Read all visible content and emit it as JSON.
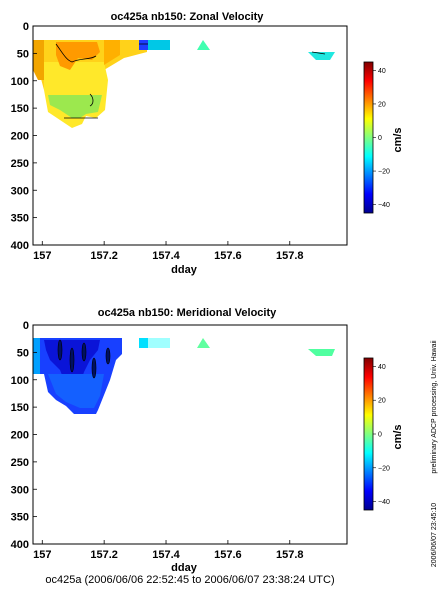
{
  "chart_data": [
    {
      "type": "heatmap",
      "title": "oc425a nb150: Zonal Velocity",
      "xlabel": "dday",
      "ylabel": "",
      "xlim": [
        156.97,
        157.985
      ],
      "ylim": [
        400,
        0
      ],
      "x_ticks": [
        "157",
        "157.2",
        "157.4",
        "157.6",
        "157.8"
      ],
      "y_ticks": [
        "0",
        "50",
        "100",
        "150",
        "200",
        "250",
        "300",
        "350",
        "400"
      ],
      "colorbar": {
        "label": "cm/s",
        "range": [
          -45,
          45
        ],
        "ticks": [
          "40",
          "20",
          "0",
          "−20",
          "−40"
        ]
      },
      "regions": [
        {
          "x": [
            157.0,
            157.25
          ],
          "y": [
            25,
            70
          ],
          "value": 28
        },
        {
          "x": [
            157.05,
            157.22
          ],
          "y": [
            70,
            160
          ],
          "value": 16
        },
        {
          "x": [
            157.32,
            157.37
          ],
          "y": [
            25,
            40
          ],
          "value": -12
        },
        {
          "x": [
            157.5,
            157.55
          ],
          "y": [
            25,
            40
          ],
          "value": 5
        },
        {
          "x": [
            157.88,
            157.93
          ],
          "y": [
            40,
            55
          ],
          "value": 3
        }
      ]
    },
    {
      "type": "heatmap",
      "title": "oc425a nb150: Meridional Velocity",
      "xlabel": "dday",
      "ylabel": "",
      "xlim": [
        156.97,
        157.985
      ],
      "ylim": [
        400,
        0
      ],
      "x_ticks": [
        "157",
        "157.2",
        "157.4",
        "157.6",
        "157.8"
      ],
      "y_ticks": [
        "0",
        "50",
        "100",
        "150",
        "200",
        "250",
        "300",
        "350",
        "400"
      ],
      "colorbar": {
        "label": "cm/s",
        "range": [
          -45,
          45
        ],
        "ticks": [
          "40",
          "20",
          "0",
          "−20",
          "−40"
        ]
      },
      "regions": [
        {
          "x": [
            157.0,
            157.25
          ],
          "y": [
            25,
            70
          ],
          "value": -38
        },
        {
          "x": [
            157.05,
            157.22
          ],
          "y": [
            70,
            160
          ],
          "value": -36
        },
        {
          "x": [
            157.32,
            157.37
          ],
          "y": [
            25,
            40
          ],
          "value": 0
        },
        {
          "x": [
            157.5,
            157.55
          ],
          "y": [
            25,
            40
          ],
          "value": 10
        },
        {
          "x": [
            157.88,
            157.93
          ],
          "y": [
            40,
            55
          ],
          "value": 5
        }
      ]
    }
  ],
  "footer": "oc425a (2006/06/06 22:52:45 to 2006/06/07 23:38:24 UTC)",
  "side_note": "preliminary ADCP processing,  Univ. Hawaii",
  "side_timestamp": "2006/06/07 23:45:10"
}
